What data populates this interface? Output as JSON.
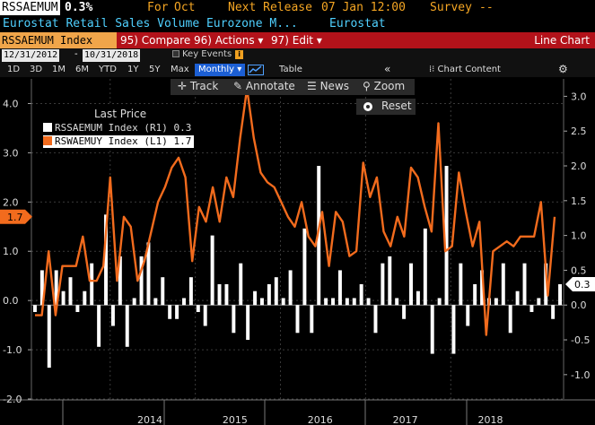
{
  "header": {
    "ticker": "RSSAEMUM",
    "value": "0.3%",
    "for_label": "For",
    "for_value": "Oct",
    "next_release_label": "Next Release",
    "next_release_value": "07 Jan 12:00",
    "survey_label": "Survey",
    "survey_value": "--",
    "description": "Eurostat Retail Sales Volume Eurozone M...",
    "source": "Eurostat"
  },
  "menu": {
    "index_label": "RSSAEMUM Index",
    "compare": "95) Compare",
    "actions": "96) Actions ▾",
    "edit": "97) Edit ▾",
    "chart_type": "Line Chart"
  },
  "daterow": {
    "start": "12/31/2012",
    "end": "10/31/2018",
    "key_events": "Key Events",
    "info": "i"
  },
  "ranges": {
    "items": [
      "1D",
      "3D",
      "1M",
      "6M",
      "YTD",
      "1Y",
      "5Y",
      "Max"
    ],
    "frequency": "Monthly ▾",
    "table": "Table",
    "collapse": "«",
    "chart_content": "Chart Content",
    "gear": "⚙"
  },
  "toolbar": {
    "track": "Track",
    "annotate": "Annotate",
    "news": "News",
    "zoom": "Zoom",
    "reset": "Reset"
  },
  "legend": {
    "title": "Last Price",
    "row1": "RSSAEMUM Index  (R1) 0.3",
    "row2": "RSWAEMUY Index  (L1) 1.7"
  },
  "chart_data": {
    "type": "bar",
    "x_labels": [
      "2014",
      "2015",
      "2016",
      "2017",
      "2018"
    ],
    "left_axis": {
      "ticks": [
        "4.0",
        "3.0",
        "2.0",
        "1.0",
        "0.0",
        "-1.0",
        "-2.0"
      ],
      "range": [
        -2.0,
        4.5
      ],
      "current_label": "1.7"
    },
    "right_axis": {
      "ticks": [
        "3.0",
        "2.5",
        "2.0",
        "1.5",
        "1.0",
        "0.5",
        "0.0",
        "-0.5",
        "-1.0"
      ],
      "range": [
        -1.35,
        3.25
      ],
      "current_label": "0.3"
    },
    "series": [
      {
        "name": "RSSAEMUM Index",
        "axis": "right",
        "kind": "bar",
        "color": "#ffffff",
        "values": [
          -0.1,
          0.5,
          -0.9,
          0.5,
          0.2,
          0.4,
          -0.1,
          0.2,
          0.6,
          -0.6,
          1.3,
          -0.3,
          0.7,
          -0.6,
          0.1,
          0.7,
          0.9,
          0.1,
          0.4,
          -0.2,
          -0.2,
          0.1,
          0.4,
          -0.1,
          -0.3,
          1.0,
          0.3,
          0.3,
          -0.4,
          0.6,
          -0.5,
          0.2,
          0.1,
          0.3,
          0.4,
          0.1,
          0.5,
          -0.4,
          1.1,
          -0.4,
          2.0,
          0.1,
          0.1,
          0.5,
          0.1,
          0.1,
          0.3,
          0.1,
          -0.4,
          0.6,
          0.7,
          0.1,
          -0.2,
          0.6,
          0.2,
          1.1,
          -0.7,
          0.1,
          2.0,
          -0.7,
          0.6,
          -0.3,
          0.3,
          0.5,
          0.1,
          0.1,
          0.6,
          -0.4,
          0.2,
          0.6,
          -0.1,
          0.1,
          0.6,
          -0.2,
          0.3
        ]
      },
      {
        "name": "RSWAEMUY Index",
        "axis": "left",
        "kind": "line",
        "color": "#f26b1d",
        "values": [
          -0.3,
          -0.3,
          1.0,
          -0.3,
          0.7,
          0.7,
          0.7,
          1.3,
          0.4,
          0.4,
          0.7,
          2.5,
          0.4,
          1.7,
          1.5,
          0.4,
          0.8,
          1.4,
          2.0,
          2.3,
          2.7,
          2.9,
          2.5,
          0.8,
          1.9,
          1.6,
          2.3,
          1.6,
          2.5,
          2.1,
          3.3,
          4.3,
          3.3,
          2.6,
          2.4,
          2.3,
          2.0,
          1.7,
          1.5,
          2.0,
          1.3,
          1.1,
          1.8,
          0.7,
          1.8,
          1.6,
          0.9,
          1.0,
          2.8,
          2.1,
          2.5,
          1.4,
          1.1,
          1.7,
          1.3,
          2.7,
          2.5,
          1.9,
          1.4,
          3.6,
          1.0,
          1.1,
          2.6,
          1.8,
          1.1,
          1.6,
          -0.7,
          1.0,
          1.1,
          1.2,
          1.1,
          1.3,
          1.3,
          1.3,
          2.0,
          0.1,
          1.7
        ]
      }
    ]
  }
}
